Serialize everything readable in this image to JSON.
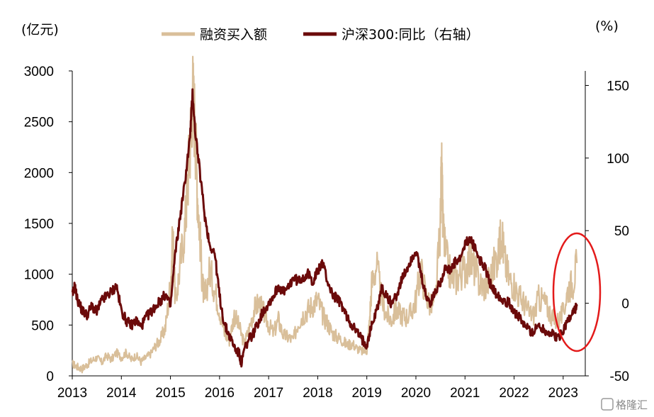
{
  "watermark": "格隆汇",
  "chart_data": {
    "type": "line",
    "left_unit": "(亿元)",
    "right_unit": "(%)",
    "x_ticks": [
      "2013",
      "2014",
      "2015",
      "2016",
      "2017",
      "2018",
      "2019",
      "2020",
      "2021",
      "2022",
      "2023"
    ],
    "y_left": {
      "range": [
        0,
        3000
      ],
      "ticks": [
        "0",
        "500",
        "1000",
        "1500",
        "2000",
        "2500",
        "3000"
      ]
    },
    "y_right": {
      "range": [
        -50,
        160
      ],
      "ticks": [
        "-50",
        "0",
        "50",
        "100",
        "150"
      ]
    },
    "grid": false,
    "legend_position": "top",
    "annotation": "red ellipse around early 2023",
    "series": [
      {
        "name": "融资买入额",
        "axis": "left",
        "color": "#d9bf9a",
        "points": [
          [
            2013.0,
            120
          ],
          [
            2013.1,
            90
          ],
          [
            2013.2,
            70
          ],
          [
            2013.3,
            110
          ],
          [
            2013.4,
            150
          ],
          [
            2013.5,
            180
          ],
          [
            2013.6,
            130
          ],
          [
            2013.7,
            200
          ],
          [
            2013.8,
            160
          ],
          [
            2013.9,
            230
          ],
          [
            2014.0,
            180
          ],
          [
            2014.1,
            230
          ],
          [
            2014.2,
            160
          ],
          [
            2014.3,
            200
          ],
          [
            2014.4,
            140
          ],
          [
            2014.5,
            180
          ],
          [
            2014.6,
            220
          ],
          [
            2014.7,
            300
          ],
          [
            2014.8,
            360
          ],
          [
            2014.9,
            480
          ],
          [
            2015.0,
            900
          ],
          [
            2015.05,
            1400
          ],
          [
            2015.1,
            700
          ],
          [
            2015.2,
            1100
          ],
          [
            2015.3,
            1500
          ],
          [
            2015.35,
            1900
          ],
          [
            2015.4,
            2300
          ],
          [
            2015.45,
            2800
          ],
          [
            2015.5,
            2500
          ],
          [
            2015.55,
            1800
          ],
          [
            2015.6,
            1400
          ],
          [
            2015.65,
            900
          ],
          [
            2015.7,
            750
          ],
          [
            2015.8,
            1050
          ],
          [
            2015.9,
            850
          ],
          [
            2016.0,
            650
          ],
          [
            2016.1,
            420
          ],
          [
            2016.2,
            350
          ],
          [
            2016.3,
            600
          ],
          [
            2016.4,
            480
          ],
          [
            2016.5,
            320
          ],
          [
            2016.6,
            450
          ],
          [
            2016.7,
            650
          ],
          [
            2016.8,
            720
          ],
          [
            2016.9,
            620
          ],
          [
            2017.0,
            500
          ],
          [
            2017.1,
            420
          ],
          [
            2017.2,
            550
          ],
          [
            2017.3,
            400
          ],
          [
            2017.4,
            380
          ],
          [
            2017.5,
            350
          ],
          [
            2017.6,
            520
          ],
          [
            2017.7,
            600
          ],
          [
            2017.8,
            650
          ],
          [
            2017.9,
            700
          ],
          [
            2018.0,
            750
          ],
          [
            2018.1,
            600
          ],
          [
            2018.2,
            520
          ],
          [
            2018.3,
            420
          ],
          [
            2018.4,
            380
          ],
          [
            2018.5,
            350
          ],
          [
            2018.6,
            300
          ],
          [
            2018.7,
            320
          ],
          [
            2018.8,
            270
          ],
          [
            2018.9,
            240
          ],
          [
            2019.0,
            250
          ],
          [
            2019.05,
            500
          ],
          [
            2019.1,
            900
          ],
          [
            2019.2,
            1100
          ],
          [
            2019.3,
            750
          ],
          [
            2019.4,
            600
          ],
          [
            2019.5,
            550
          ],
          [
            2019.6,
            650
          ],
          [
            2019.7,
            600
          ],
          [
            2019.8,
            580
          ],
          [
            2019.9,
            620
          ],
          [
            2020.0,
            750
          ],
          [
            2020.1,
            1050
          ],
          [
            2020.2,
            800
          ],
          [
            2020.3,
            680
          ],
          [
            2020.4,
            750
          ],
          [
            2020.5,
            1500
          ],
          [
            2020.52,
            2080
          ],
          [
            2020.55,
            1500
          ],
          [
            2020.6,
            1200
          ],
          [
            2020.7,
            1000
          ],
          [
            2020.8,
            950
          ],
          [
            2020.9,
            1000
          ],
          [
            2021.0,
            1050
          ],
          [
            2021.1,
            1150
          ],
          [
            2021.2,
            1050
          ],
          [
            2021.3,
            900
          ],
          [
            2021.4,
            880
          ],
          [
            2021.5,
            950
          ],
          [
            2021.6,
            1100
          ],
          [
            2021.7,
            1250
          ],
          [
            2021.75,
            1450
          ],
          [
            2021.8,
            1150
          ],
          [
            2021.9,
            950
          ],
          [
            2022.0,
            900
          ],
          [
            2022.1,
            780
          ],
          [
            2022.2,
            720
          ],
          [
            2022.3,
            620
          ],
          [
            2022.4,
            600
          ],
          [
            2022.5,
            760
          ],
          [
            2022.6,
            740
          ],
          [
            2022.7,
            650
          ],
          [
            2022.8,
            560
          ],
          [
            2022.9,
            540
          ],
          [
            2023.0,
            620
          ],
          [
            2023.1,
            860
          ],
          [
            2023.2,
            920
          ],
          [
            2023.28,
            1110
          ]
        ]
      },
      {
        "name": "沪深300:同比（右轴）",
        "axis": "right",
        "color": "#6b0a0a",
        "points": [
          [
            2013.0,
            5
          ],
          [
            2013.05,
            12
          ],
          [
            2013.1,
            3
          ],
          [
            2013.2,
            -5
          ],
          [
            2013.3,
            -8
          ],
          [
            2013.4,
            -2
          ],
          [
            2013.5,
            -6
          ],
          [
            2013.6,
            2
          ],
          [
            2013.7,
            5
          ],
          [
            2013.8,
            8
          ],
          [
            2013.9,
            12
          ],
          [
            2014.0,
            -5
          ],
          [
            2014.1,
            -12
          ],
          [
            2014.2,
            -15
          ],
          [
            2014.3,
            -12
          ],
          [
            2014.4,
            -16
          ],
          [
            2014.5,
            -10
          ],
          [
            2014.6,
            -6
          ],
          [
            2014.7,
            -2
          ],
          [
            2014.8,
            2
          ],
          [
            2014.9,
            6
          ],
          [
            2015.0,
            -2
          ],
          [
            2015.1,
            35
          ],
          [
            2015.2,
            60
          ],
          [
            2015.3,
            85
          ],
          [
            2015.4,
            115
          ],
          [
            2015.45,
            145
          ],
          [
            2015.5,
            120
          ],
          [
            2015.6,
            90
          ],
          [
            2015.7,
            60
          ],
          [
            2015.8,
            40
          ],
          [
            2015.9,
            35
          ],
          [
            2016.0,
            5
          ],
          [
            2016.1,
            -15
          ],
          [
            2016.2,
            -22
          ],
          [
            2016.3,
            -30
          ],
          [
            2016.4,
            -35
          ],
          [
            2016.45,
            -42
          ],
          [
            2016.5,
            -32
          ],
          [
            2016.6,
            -25
          ],
          [
            2016.7,
            -20
          ],
          [
            2016.8,
            -12
          ],
          [
            2016.9,
            -5
          ],
          [
            2017.0,
            0
          ],
          [
            2017.1,
            5
          ],
          [
            2017.2,
            12
          ],
          [
            2017.3,
            8
          ],
          [
            2017.4,
            10
          ],
          [
            2017.5,
            18
          ],
          [
            2017.6,
            15
          ],
          [
            2017.7,
            18
          ],
          [
            2017.8,
            20
          ],
          [
            2017.9,
            15
          ],
          [
            2018.0,
            22
          ],
          [
            2018.1,
            28
          ],
          [
            2018.2,
            15
          ],
          [
            2018.3,
            6
          ],
          [
            2018.4,
            3
          ],
          [
            2018.5,
            -2
          ],
          [
            2018.6,
            -10
          ],
          [
            2018.7,
            -15
          ],
          [
            2018.8,
            -20
          ],
          [
            2018.9,
            -25
          ],
          [
            2019.0,
            -28
          ],
          [
            2019.1,
            -15
          ],
          [
            2019.2,
            -5
          ],
          [
            2019.3,
            10
          ],
          [
            2019.4,
            5
          ],
          [
            2019.5,
            0
          ],
          [
            2019.6,
            5
          ],
          [
            2019.7,
            15
          ],
          [
            2019.8,
            22
          ],
          [
            2019.9,
            30
          ],
          [
            2020.0,
            36
          ],
          [
            2020.1,
            20
          ],
          [
            2020.2,
            5
          ],
          [
            2020.3,
            0
          ],
          [
            2020.4,
            8
          ],
          [
            2020.5,
            15
          ],
          [
            2020.6,
            25
          ],
          [
            2020.7,
            22
          ],
          [
            2020.8,
            28
          ],
          [
            2020.9,
            30
          ],
          [
            2021.0,
            40
          ],
          [
            2021.1,
            45
          ],
          [
            2021.2,
            38
          ],
          [
            2021.3,
            30
          ],
          [
            2021.4,
            25
          ],
          [
            2021.5,
            15
          ],
          [
            2021.6,
            8
          ],
          [
            2021.7,
            5
          ],
          [
            2021.8,
            2
          ],
          [
            2021.9,
            0
          ],
          [
            2022.0,
            -5
          ],
          [
            2022.1,
            -10
          ],
          [
            2022.2,
            -15
          ],
          [
            2022.3,
            -18
          ],
          [
            2022.4,
            -20
          ],
          [
            2022.5,
            -15
          ],
          [
            2022.6,
            -18
          ],
          [
            2022.7,
            -20
          ],
          [
            2022.8,
            -22
          ],
          [
            2022.9,
            -24
          ],
          [
            2023.0,
            -18
          ],
          [
            2023.1,
            -12
          ],
          [
            2023.2,
            -6
          ],
          [
            2023.28,
            -2
          ]
        ]
      }
    ]
  }
}
